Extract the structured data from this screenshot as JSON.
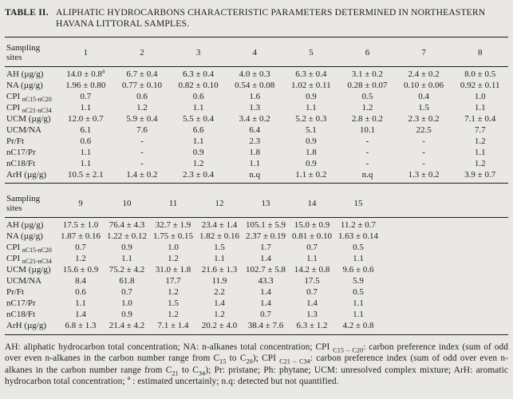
{
  "colors": {
    "page_background": "#eae8e4",
    "ink": "#1d1d1d",
    "rule": "#1d1d1d"
  },
  "title": {
    "label": "TABLE II.",
    "text": "ALIPHATIC HYDROCARBONS CHARACTERISTIC PARAMETERS DETERMINED IN NORTHEASTERN HAVANA LITTORAL SAMPLES."
  },
  "tables": [
    {
      "header_label": "Sampling sites",
      "sites": [
        "1",
        "2",
        "3",
        "4",
        "5",
        "6",
        "7",
        "8"
      ],
      "rows": [
        {
          "label": [
            {
              "t": "AH (µg/g)"
            }
          ],
          "values": [
            "14.0 ± 0.8^a",
            "6.7 ± 0.4",
            "6.3 ± 0.4",
            "4.0 ± 0.3",
            "6.3 ± 0.4",
            "3.1 ± 0.2",
            "2.4 ± 0.2",
            "8.0 ± 0.5"
          ]
        },
        {
          "label": [
            {
              "t": "NA (µg/g)"
            }
          ],
          "values": [
            "1.96 ± 0.80",
            "0.77 ± 0.10",
            "0.82 ± 0.10",
            "0.54 ± 0.08",
            "1.02 ± 0.11",
            "0.28 ± 0.07",
            "0.10 ± 0.06",
            "0.92 ± 0.11"
          ]
        },
        {
          "label": [
            {
              "t": "CPI "
            },
            {
              "t": "nC15-nC20",
              "sub": true
            }
          ],
          "values": [
            "0.7",
            "0.6",
            "0.6",
            "1.6",
            "0.9",
            "0.5",
            "0.4",
            "1.0"
          ]
        },
        {
          "label": [
            {
              "t": "CPI "
            },
            {
              "t": "nC21-nC34",
              "sub": true
            }
          ],
          "values": [
            "1.1",
            "1.2",
            "1.1",
            "1.3",
            "1.1",
            "1.2",
            "1.5",
            "1.1"
          ]
        },
        {
          "label": [
            {
              "t": "UCM (µg/g)"
            }
          ],
          "values": [
            "12.0 ± 0.7",
            "5.9 ± 0.4",
            "5.5 ± 0.4",
            "3.4 ± 0.2",
            "5.2 ± 0.3",
            "2.8 ± 0.2",
            "2.3 ± 0.2",
            "7.1 ± 0.4"
          ]
        },
        {
          "label": [
            {
              "t": "UCM/NA"
            }
          ],
          "values": [
            "6.1",
            "7.6",
            "6.6",
            "6.4",
            "5.1",
            "10.1",
            "22.5",
            "7.7"
          ]
        },
        {
          "label": [
            {
              "t": "Pr/Ft"
            }
          ],
          "values": [
            "0.6",
            "-",
            "1.1",
            "2.3",
            "0.9",
            "-",
            "-",
            "1.2"
          ]
        },
        {
          "label": [
            {
              "t": "nC17/Pr"
            }
          ],
          "values": [
            "1.1",
            "-",
            "0.9",
            "1.8",
            "1.8",
            "-",
            "-",
            "1.1"
          ]
        },
        {
          "label": [
            {
              "t": "nC18/Ft"
            }
          ],
          "values": [
            "1.1",
            "-",
            "1.2",
            "1.1",
            "0.9",
            "-",
            "-",
            "1.2"
          ]
        },
        {
          "label": [
            {
              "t": "ArH (µg/g)"
            }
          ],
          "values": [
            "10.5 ± 2.1",
            "1.4 ± 0.2",
            "2.3 ± 0.4",
            "n.q",
            "1.1 ± 0.2",
            "n.q",
            "1.3 ± 0.2",
            "3.9 ± 0.7"
          ]
        }
      ]
    },
    {
      "header_label": "Sampling sites",
      "sites": [
        "9",
        "10",
        "11",
        "12",
        "13",
        "14",
        "15"
      ],
      "rows": [
        {
          "label": [
            {
              "t": "AH (µg/g)"
            }
          ],
          "values": [
            "17.5 ± 1.0",
            "76.4 ± 4.3",
            "32.7 ± 1.9",
            "23.4 ± 1.4",
            "105.1 ± 5.9",
            "15.0 ± 0.9",
            "11.2 ± 0.7"
          ]
        },
        {
          "label": [
            {
              "t": "NA (µg/g)"
            }
          ],
          "values": [
            "1.87 ± 0.16",
            "1.22 ± 0.12",
            "1.75 ± 0.15",
            "1.82 ± 0.16",
            "2.37 ± 0.19",
            "0.81 ± 0.10",
            "1.63 ± 0.14"
          ]
        },
        {
          "label": [
            {
              "t": "CPI "
            },
            {
              "t": "nC15-nC20",
              "sub": true
            }
          ],
          "values": [
            "0.7",
            "0.9",
            "1.0",
            "1.5",
            "1.7",
            "0.7",
            "0.5"
          ]
        },
        {
          "label": [
            {
              "t": "CPI "
            },
            {
              "t": "nC21-nC34",
              "sub": true
            }
          ],
          "values": [
            "1.2",
            "1.1",
            "1.2",
            "1.1",
            "1.4",
            "1.1",
            "1.1"
          ]
        },
        {
          "label": [
            {
              "t": "UCM (µg/g)"
            }
          ],
          "values": [
            "15.6 ± 0.9",
            "75.2 ± 4.2",
            "31.0 ± 1.8",
            "21.6 ± 1.3",
            "102.7 ± 5.8",
            "14.2 ± 0.8",
            "9.6 ± 0.6"
          ]
        },
        {
          "label": [
            {
              "t": "UCM/NA"
            }
          ],
          "values": [
            "8.4",
            "61.8",
            "17.7",
            "11.9",
            "43.3",
            "17.5",
            "5.9"
          ]
        },
        {
          "label": [
            {
              "t": "Pr/Ft"
            }
          ],
          "values": [
            "0.6",
            "0.7",
            "1.2",
            "2.2",
            "1.4",
            "0.7",
            "0.5"
          ]
        },
        {
          "label": [
            {
              "t": "nC17/Pr"
            }
          ],
          "values": [
            "1.1",
            "1.0",
            "1.5",
            "1.4",
            "1.4",
            "1.4",
            "1.1"
          ]
        },
        {
          "label": [
            {
              "t": "nC18/Ft"
            }
          ],
          "values": [
            "1.4",
            "0.9",
            "1.2",
            "1.2",
            "0.7",
            "1.3",
            "1.1"
          ]
        },
        {
          "label": [
            {
              "t": "ArH (µg/g)"
            }
          ],
          "values": [
            "6.8 ± 1.3",
            "21.4 ± 4.2",
            "7.1 ± 1.4",
            "20.2 ± 4.0",
            "38.4 ± 7.6",
            "6.3 ± 1.2",
            "4.2 ± 0.8"
          ]
        }
      ]
    }
  ],
  "footnote": {
    "segments": [
      {
        "t": "AH: aliphatic hydrocarbon total concentration; NA: n-alkanes total concentration; CPI "
      },
      {
        "t": "C15 – C20",
        "sub": true
      },
      {
        "t": ": carbon preference index (sum of odd over even n-alkanes in the carbon number range from C"
      },
      {
        "t": "15",
        "sub": true
      },
      {
        "t": " to C"
      },
      {
        "t": "20",
        "sub": true
      },
      {
        "t": "); CPI "
      },
      {
        "t": "C21 – C34",
        "sub": true
      },
      {
        "t": ": carbon preference index (sum of odd over even n-alkanes in the carbon number range from C"
      },
      {
        "t": "21",
        "sub": true
      },
      {
        "t": " to C"
      },
      {
        "t": "34",
        "sub": true
      },
      {
        "t": "); Pr: pristane; Ph: phytane; UCM: unresolved complex mixture; ArH: aromatic hydrocarbon total concentration; "
      },
      {
        "t": "a",
        "sup": true
      },
      {
        "t": " : estimated uncertainly; n.q: detected but not quantified."
      }
    ]
  }
}
